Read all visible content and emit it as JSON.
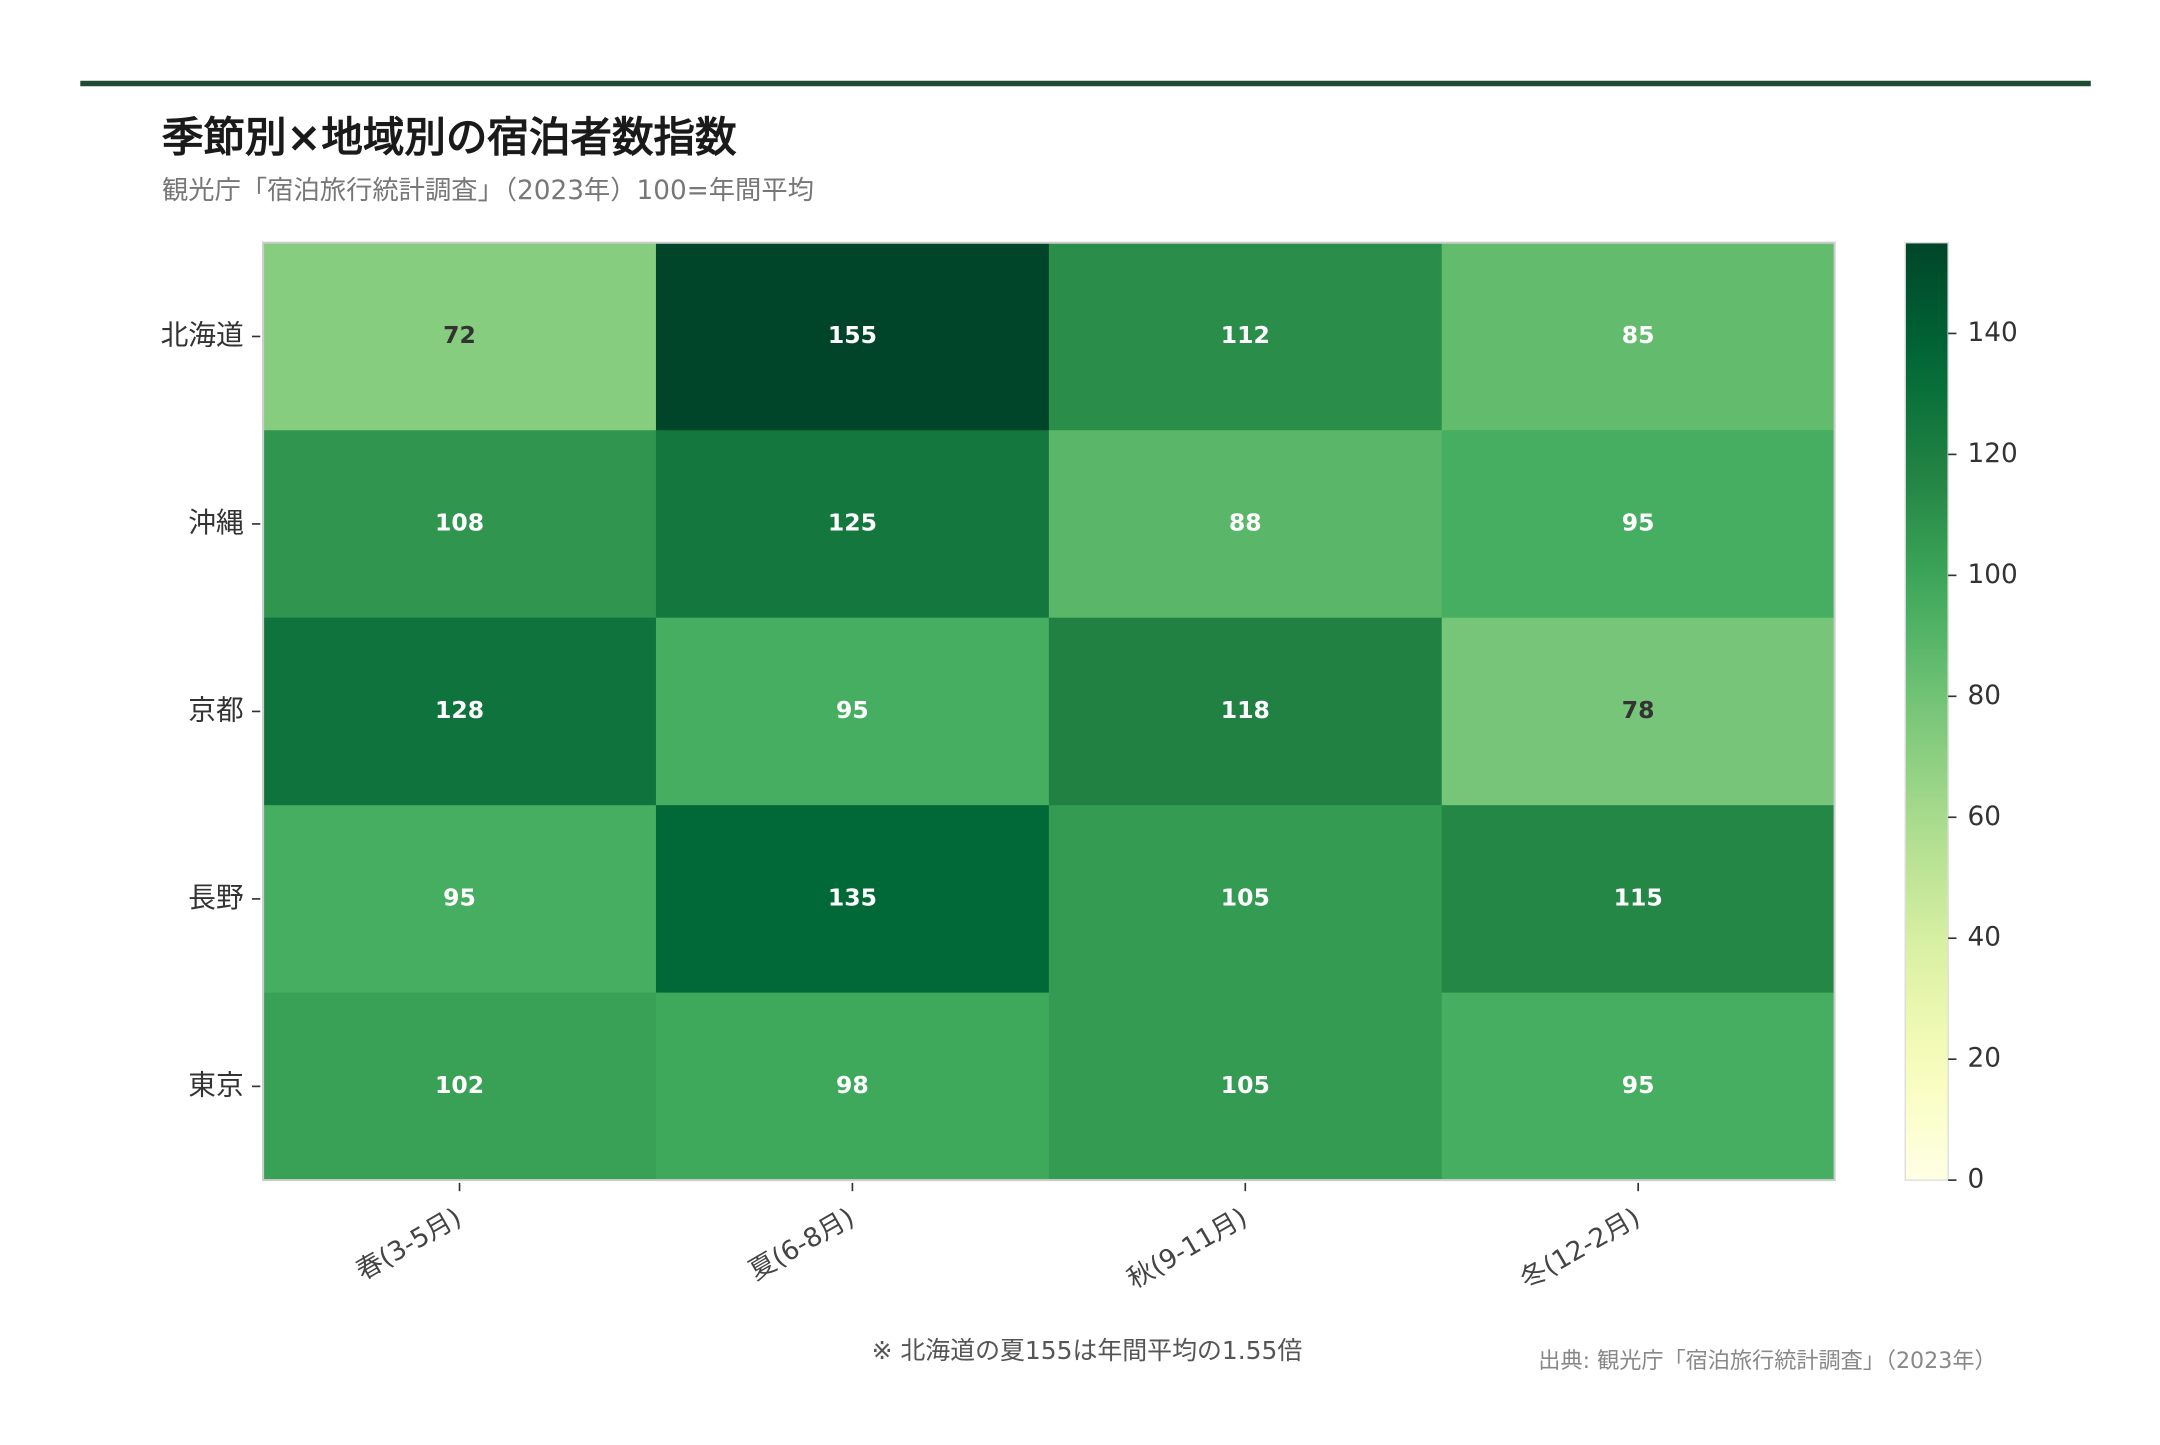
{
  "chart_data": {
    "type": "heatmap",
    "title": "季節別×地域別の宿泊者数指数",
    "subtitle": "観光庁「宿泊旅行統計調査」（2023年）100=年間平均",
    "rows": [
      "北海道",
      "沖縄",
      "京都",
      "長野",
      "東京"
    ],
    "columns": [
      "春(3-5月)",
      "夏(6-8月)",
      "秋(9-11月)",
      "冬(12-2月)"
    ],
    "values": [
      [
        72,
        155,
        112,
        85
      ],
      [
        108,
        125,
        88,
        95
      ],
      [
        128,
        95,
        118,
        78
      ],
      [
        95,
        135,
        105,
        115
      ],
      [
        102,
        98,
        105,
        95
      ]
    ],
    "colormap": "YlGn",
    "clim": [
      0,
      155
    ],
    "cticks": [
      0,
      20,
      40,
      60,
      80,
      100,
      120,
      140
    ],
    "annotation": "※ 北海道の夏155は年間平均の1.55倍",
    "source": "出典: 観光庁「宿泊旅行統計調査」（2023年）"
  }
}
